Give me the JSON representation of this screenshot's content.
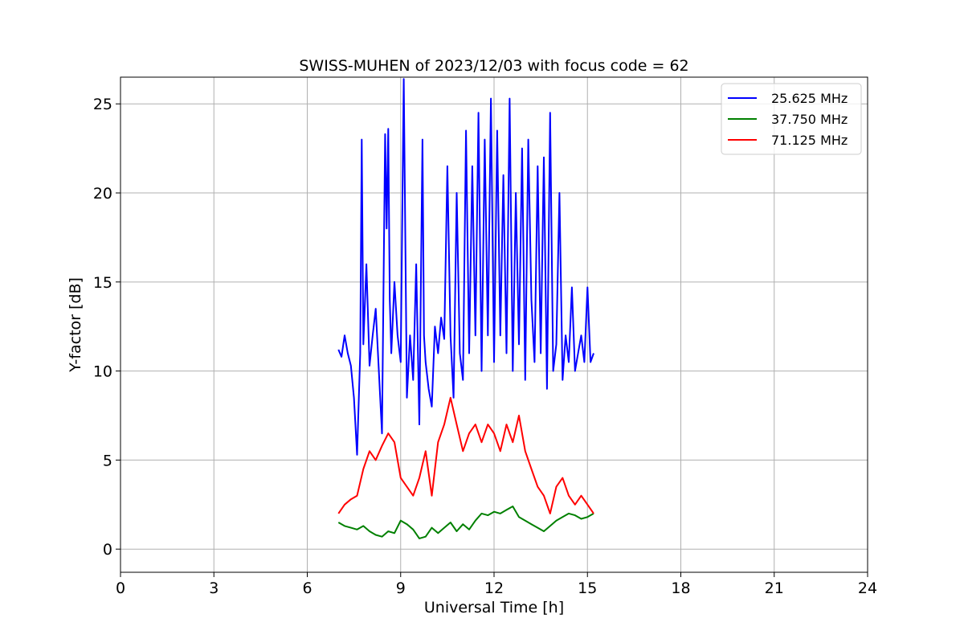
{
  "chart_data": {
    "type": "line",
    "title": "SWISS-MUHEN of 2023/12/03 with focus code = 62",
    "xlabel": "Universal Time [h]",
    "ylabel": "Y-factor [dB]",
    "xlim": [
      0,
      24
    ],
    "ylim": [
      -1.3,
      26.5
    ],
    "xticks": [
      0,
      3,
      6,
      9,
      12,
      15,
      18,
      21,
      24
    ],
    "yticks": [
      0,
      5,
      10,
      15,
      20,
      25
    ],
    "grid": true,
    "legend_position": "top-right",
    "series": [
      {
        "name": "25.625 MHz",
        "color": "#0000ff",
        "x": [
          7.0,
          7.1,
          7.2,
          7.3,
          7.4,
          7.5,
          7.6,
          7.7,
          7.75,
          7.8,
          7.9,
          8.0,
          8.1,
          8.2,
          8.3,
          8.4,
          8.5,
          8.55,
          8.6,
          8.65,
          8.7,
          8.8,
          8.9,
          9.0,
          9.1,
          9.2,
          9.3,
          9.4,
          9.5,
          9.6,
          9.7,
          9.75,
          9.8,
          9.9,
          10.0,
          10.1,
          10.2,
          10.3,
          10.4,
          10.5,
          10.6,
          10.7,
          10.8,
          10.9,
          11.0,
          11.1,
          11.2,
          11.3,
          11.4,
          11.5,
          11.6,
          11.7,
          11.8,
          11.9,
          12.0,
          12.1,
          12.2,
          12.3,
          12.4,
          12.5,
          12.6,
          12.7,
          12.8,
          12.9,
          13.0,
          13.1,
          13.2,
          13.3,
          13.4,
          13.5,
          13.6,
          13.7,
          13.8,
          13.9,
          14.0,
          14.1,
          14.2,
          14.3,
          14.4,
          14.5,
          14.6,
          14.7,
          14.8,
          14.9,
          15.0,
          15.1,
          15.2
        ],
        "y": [
          11.2,
          10.8,
          12.0,
          11.0,
          10.3,
          8.5,
          5.3,
          11.0,
          23.0,
          11.5,
          16.0,
          10.3,
          12.0,
          13.5,
          10.0,
          6.5,
          23.3,
          18.0,
          23.6,
          14.0,
          11.0,
          15.0,
          12.0,
          10.5,
          26.4,
          8.5,
          12.0,
          9.5,
          16.0,
          7.0,
          23.0,
          12.0,
          10.5,
          9.0,
          8.0,
          12.5,
          11.0,
          13.0,
          11.8,
          21.5,
          12.0,
          8.5,
          20.0,
          11.0,
          9.5,
          23.5,
          11.0,
          21.5,
          12.0,
          24.5,
          10.0,
          23.0,
          12.0,
          25.3,
          10.5,
          23.5,
          12.0,
          21.0,
          11.0,
          25.3,
          10.0,
          20.0,
          11.5,
          22.5,
          9.5,
          23.0,
          14.0,
          10.5,
          21.5,
          11.0,
          22.0,
          9.0,
          24.5,
          10.0,
          11.5,
          20.0,
          9.5,
          12.0,
          10.5,
          14.7,
          10.0,
          11.0,
          12.0,
          10.5,
          14.7,
          10.5,
          11.0
        ]
      },
      {
        "name": "37.750 MHz",
        "color": "#008000",
        "x": [
          7.0,
          7.2,
          7.4,
          7.6,
          7.8,
          8.0,
          8.2,
          8.4,
          8.6,
          8.8,
          9.0,
          9.2,
          9.4,
          9.6,
          9.8,
          10.0,
          10.2,
          10.4,
          10.6,
          10.8,
          11.0,
          11.2,
          11.4,
          11.6,
          11.8,
          12.0,
          12.2,
          12.4,
          12.6,
          12.8,
          13.0,
          13.2,
          13.4,
          13.6,
          13.8,
          14.0,
          14.2,
          14.4,
          14.6,
          14.8,
          15.0,
          15.2
        ],
        "y": [
          1.5,
          1.3,
          1.2,
          1.1,
          1.3,
          1.0,
          0.8,
          0.7,
          1.0,
          0.9,
          1.6,
          1.4,
          1.1,
          0.6,
          0.7,
          1.2,
          0.9,
          1.2,
          1.5,
          1.0,
          1.4,
          1.1,
          1.6,
          2.0,
          1.9,
          2.1,
          2.0,
          2.2,
          2.4,
          1.8,
          1.6,
          1.4,
          1.2,
          1.0,
          1.3,
          1.6,
          1.8,
          2.0,
          1.9,
          1.7,
          1.8,
          2.0
        ]
      },
      {
        "name": "71.125 MHz",
        "color": "#ff0000",
        "x": [
          7.0,
          7.2,
          7.4,
          7.6,
          7.8,
          8.0,
          8.2,
          8.4,
          8.6,
          8.8,
          9.0,
          9.2,
          9.4,
          9.6,
          9.8,
          10.0,
          10.2,
          10.4,
          10.6,
          10.8,
          11.0,
          11.2,
          11.4,
          11.6,
          11.8,
          12.0,
          12.2,
          12.4,
          12.6,
          12.8,
          13.0,
          13.2,
          13.4,
          13.6,
          13.8,
          14.0,
          14.2,
          14.4,
          14.6,
          14.8,
          15.0,
          15.2
        ],
        "y": [
          2.0,
          2.5,
          2.8,
          3.0,
          4.5,
          5.5,
          5.0,
          5.8,
          6.5,
          6.0,
          4.0,
          3.5,
          3.0,
          4.0,
          5.5,
          3.0,
          6.0,
          7.0,
          8.5,
          7.0,
          5.5,
          6.5,
          7.0,
          6.0,
          7.0,
          6.5,
          5.5,
          7.0,
          6.0,
          7.5,
          5.5,
          4.5,
          3.5,
          3.0,
          2.0,
          3.5,
          4.0,
          3.0,
          2.5,
          3.0,
          2.5,
          2.0
        ]
      }
    ]
  }
}
